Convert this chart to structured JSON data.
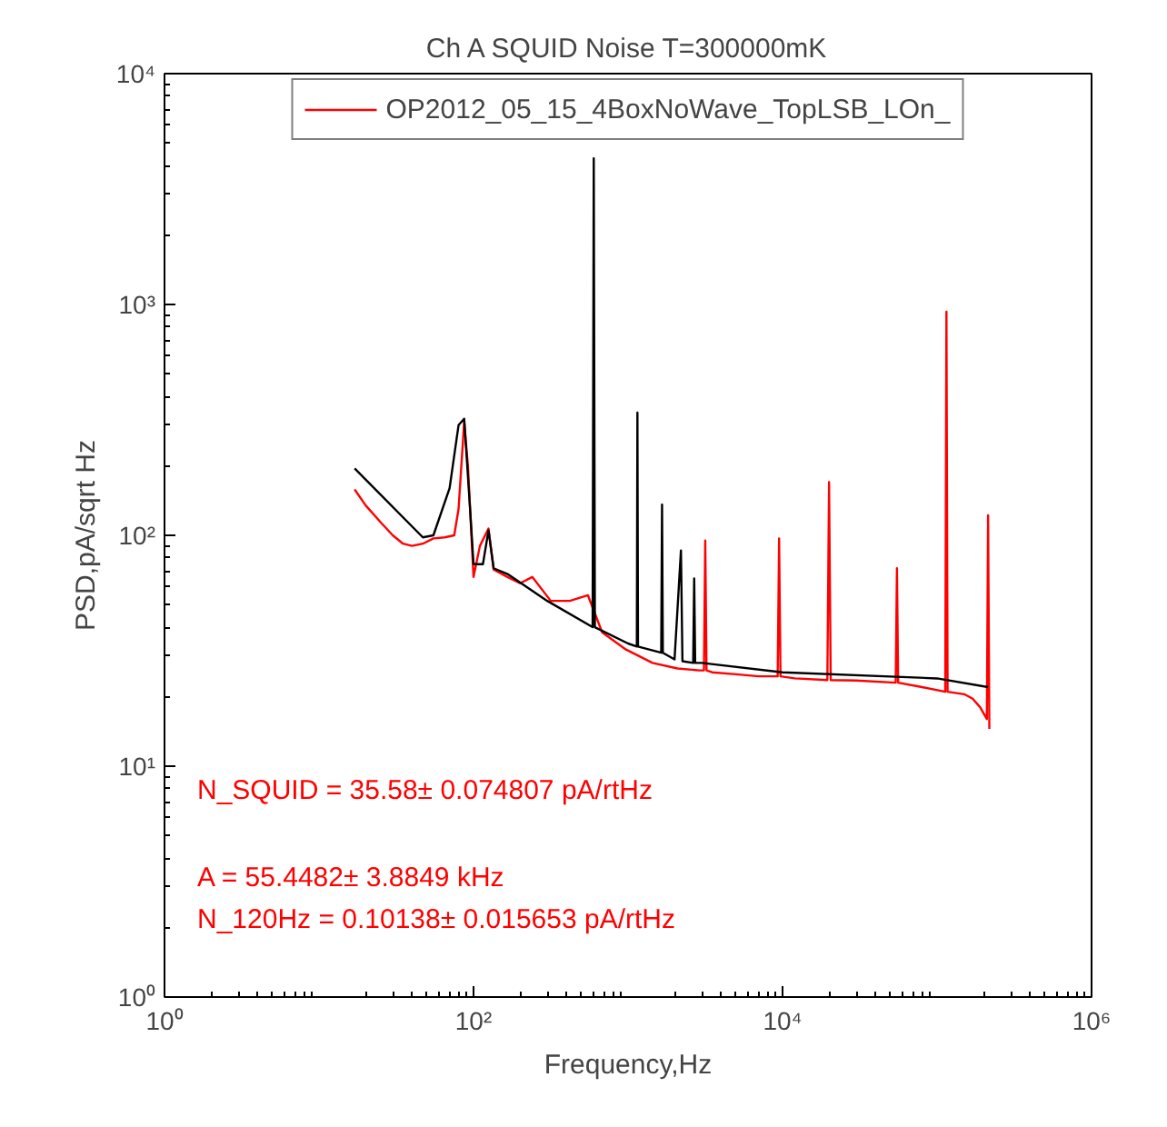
{
  "chart_data": {
    "type": "line",
    "title": "Ch A SQUID Noise T=300000mK",
    "xlabel": "Frequency,Hz",
    "ylabel": "PSD,pA/sqrt Hz",
    "log": "xy",
    "grid": false,
    "legend": "top",
    "marker": "none",
    "line_style": "solid",
    "xlim": [
      1,
      1000000
    ],
    "ylim": [
      1,
      10000
    ],
    "xticks": [
      {
        "value": 1,
        "label": "10⁰"
      },
      {
        "value": 100,
        "label": "10²"
      },
      {
        "value": 10000,
        "label": "10⁴"
      },
      {
        "value": 1000000,
        "label": "10⁶"
      }
    ],
    "yticks": [
      {
        "value": 1,
        "label": "10⁰"
      },
      {
        "value": 10,
        "label": "10¹"
      },
      {
        "value": 100,
        "label": "10²"
      },
      {
        "value": 1000,
        "label": "10³"
      },
      {
        "value": 10000,
        "label": "10⁴"
      }
    ],
    "series": [
      {
        "name": "OP2012_05_15_4BoxNoWave_TopLSB_LOn_",
        "color": "#ff0000",
        "x": [
          17,
          20,
          25,
          30,
          35,
          40,
          47,
          55,
          65,
          75,
          80,
          87,
          92,
          100,
          110,
          125,
          135,
          166,
          200,
          240,
          316,
          420,
          550,
          680,
          970,
          1440,
          2090,
          2900,
          3100,
          3160,
          3220,
          3500,
          5000,
          7000,
          9300,
          9500,
          9700,
          12000,
          19500,
          20000,
          20500,
          30000,
          54000,
          55000,
          56000,
          80000,
          113000,
          115000,
          117000,
          150000,
          170000,
          190000,
          210000,
          214000,
          218000
        ],
        "values": [
          158,
          135,
          114,
          100,
          92,
          90,
          92,
          97,
          98,
          100,
          130,
          310,
          200,
          66,
          90,
          107,
          71,
          66,
          62,
          66,
          52,
          52,
          55,
          38,
          32,
          28,
          26.5,
          26,
          26,
          95,
          26,
          25.5,
          25,
          24.5,
          24.5,
          97,
          24.5,
          24,
          23.6,
          170,
          23.6,
          23.5,
          23,
          72,
          23,
          22,
          21,
          930,
          21,
          20.5,
          19.6,
          18,
          16,
          122,
          14.5
        ]
      },
      {
        "color": "#000000",
        "x": [
          17,
          47,
          55,
          70,
          80,
          87,
          95,
          100,
          115,
          125,
          135,
          166,
          300,
          590,
          600,
          610,
          1000,
          1140,
          1150,
          1160,
          1640,
          1660,
          1680,
          2000,
          2200,
          2250,
          2640,
          2680,
          2720,
          3000,
          10000,
          100000,
          214000
        ],
        "values": [
          195,
          98,
          100,
          160,
          300,
          320,
          130,
          75,
          75,
          105,
          72,
          68,
          52,
          40,
          4300,
          40,
          34,
          33,
          340,
          33,
          31,
          136,
          31,
          29,
          86,
          28.5,
          28,
          65,
          28,
          28,
          25.5,
          24,
          22
        ]
      }
    ],
    "annotations": [
      "N_SQUID = 35.58± 0.074807 pA/rtHz",
      "A = 55.4482± 3.8849 kHz",
      "N_120Hz = 0.10138± 0.015653 pA/rtHz"
    ]
  }
}
